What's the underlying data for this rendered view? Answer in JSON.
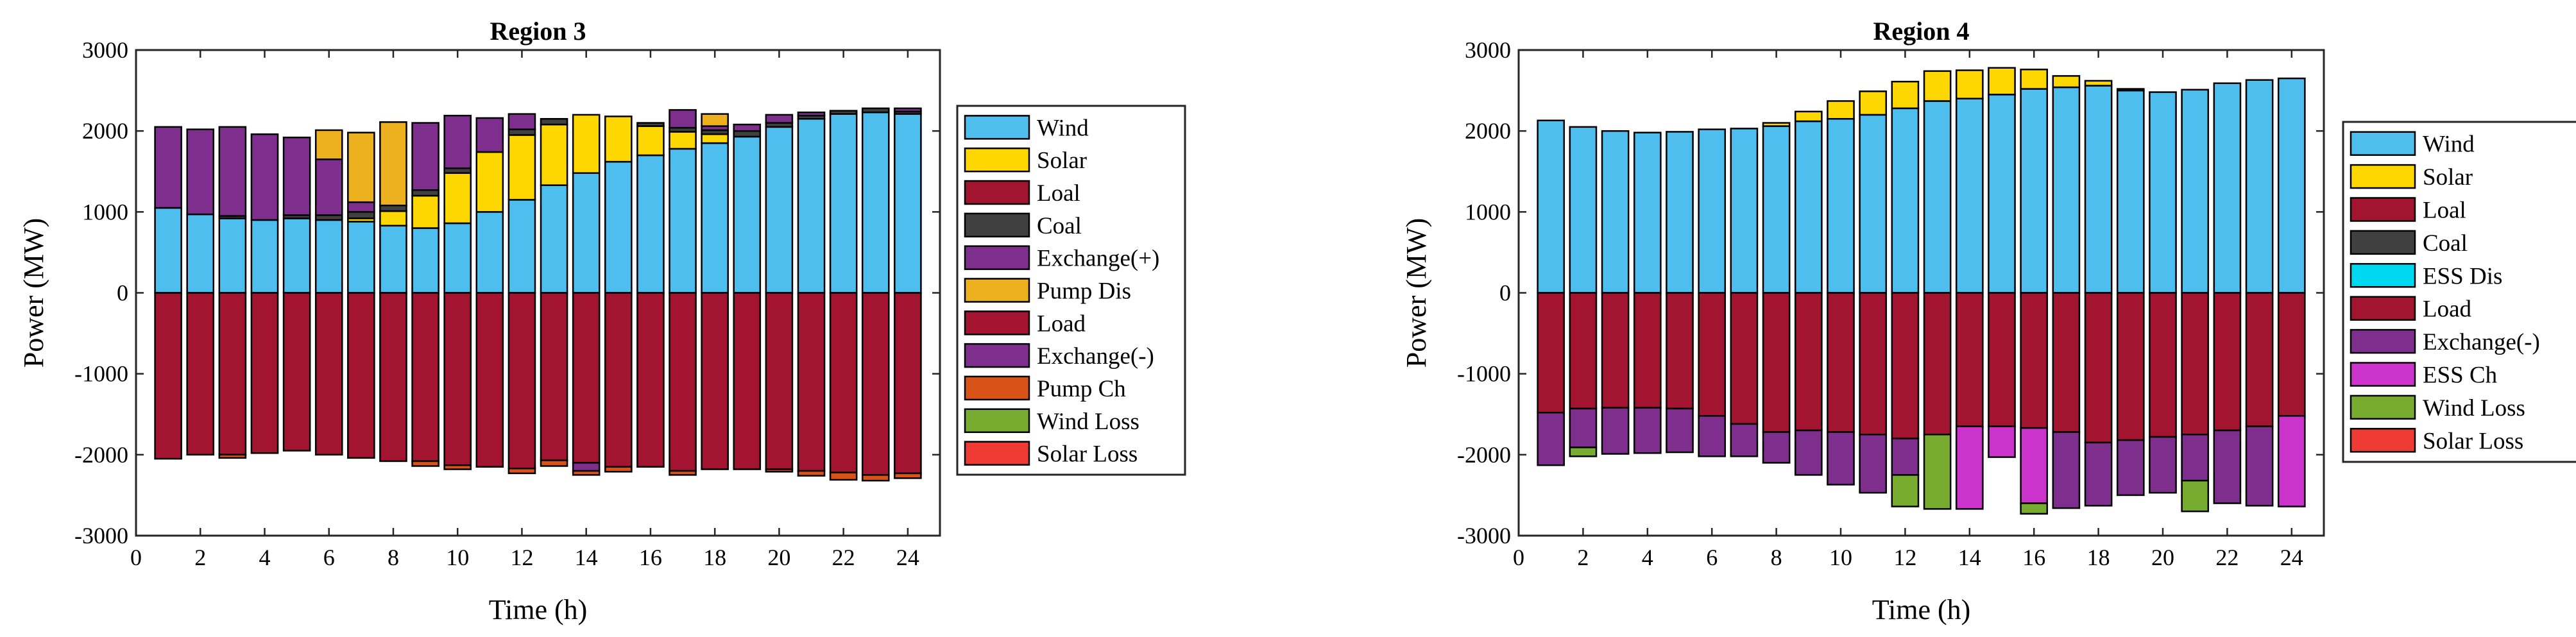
{
  "chart_data": [
    {
      "type": "bar",
      "stacked": true,
      "title": "Region 3",
      "xlabel": "Time (h)",
      "ylabel": "Power (MW)",
      "xlim": [
        0,
        25
      ],
      "ylim": [
        -3000,
        3000
      ],
      "xticks": [
        "0",
        "2",
        "4",
        "6",
        "8",
        "10",
        "12",
        "14",
        "16",
        "18",
        "20",
        "22",
        "24"
      ],
      "yticks": [
        "-3000",
        "-2000",
        "-1000",
        "0",
        "1000",
        "2000",
        "3000"
      ],
      "grid": false,
      "legend_position": "right",
      "x": [
        1,
        2,
        3,
        4,
        5,
        6,
        7,
        8,
        9,
        10,
        11,
        12,
        13,
        14,
        15,
        16,
        17,
        18,
        19,
        20,
        21,
        22,
        23,
        24
      ],
      "series": [
        {
          "name": "Wind",
          "color": "#4dbeee",
          "values": [
            1050,
            970,
            920,
            900,
            920,
            900,
            880,
            830,
            800,
            860,
            1000,
            1150,
            1330,
            1480,
            1620,
            1700,
            1780,
            1850,
            1930,
            2050,
            2150,
            2210,
            2230,
            2210
          ]
        },
        {
          "name": "Solar",
          "color": "#ffd700",
          "values": [
            0,
            0,
            0,
            0,
            0,
            0,
            40,
            180,
            400,
            620,
            740,
            800,
            750,
            720,
            560,
            360,
            210,
            110,
            0,
            0,
            0,
            0,
            0,
            0
          ]
        },
        {
          "name": "Loal",
          "color": "#a2142f",
          "values": [
            0,
            0,
            0,
            0,
            0,
            0,
            0,
            0,
            0,
            0,
            0,
            0,
            0,
            0,
            0,
            0,
            0,
            0,
            0,
            0,
            0,
            0,
            0,
            0
          ]
        },
        {
          "name": "Coal",
          "color": "#404040",
          "values": [
            0,
            0,
            30,
            0,
            40,
            60,
            80,
            70,
            70,
            60,
            0,
            70,
            70,
            0,
            0,
            40,
            50,
            50,
            70,
            50,
            40,
            40,
            50,
            30
          ]
        },
        {
          "name": "Exchange(+)",
          "color": "#7e2f8e",
          "values": [
            1000,
            1050,
            1100,
            1060,
            960,
            690,
            120,
            0,
            830,
            650,
            420,
            190,
            0,
            0,
            0,
            0,
            220,
            50,
            80,
            100,
            40,
            0,
            0,
            40
          ]
        },
        {
          "name": "Pump Dis",
          "color": "#edb120",
          "values": [
            0,
            0,
            0,
            0,
            0,
            360,
            860,
            1030,
            0,
            0,
            0,
            0,
            0,
            0,
            0,
            0,
            0,
            150,
            0,
            0,
            0,
            0,
            0,
            0
          ]
        },
        {
          "name": "Load",
          "color": "#a2142f",
          "values": [
            -2050,
            -2000,
            -2000,
            -1980,
            -1950,
            -2000,
            -2040,
            -2080,
            -2080,
            -2130,
            -2150,
            -2170,
            -2070,
            -2100,
            -2150,
            -2150,
            -2200,
            -2180,
            -2180,
            -2180,
            -2200,
            -2220,
            -2250,
            -2230
          ]
        },
        {
          "name": "Exchange(-)",
          "color": "#7e2f8e",
          "values": [
            0,
            0,
            0,
            0,
            0,
            0,
            0,
            0,
            0,
            0,
            0,
            0,
            0,
            -100,
            0,
            0,
            0,
            0,
            0,
            0,
            0,
            0,
            0,
            0
          ]
        },
        {
          "name": "Pump Ch",
          "color": "#d95319",
          "values": [
            0,
            0,
            -40,
            0,
            0,
            0,
            0,
            0,
            -60,
            -50,
            0,
            -60,
            -70,
            -50,
            -60,
            0,
            -50,
            0,
            0,
            -30,
            -60,
            -90,
            -70,
            -60
          ]
        },
        {
          "name": "Wind Loss",
          "color": "#77ac30",
          "values": [
            0,
            0,
            0,
            0,
            0,
            0,
            0,
            0,
            0,
            0,
            0,
            0,
            0,
            0,
            0,
            0,
            0,
            0,
            0,
            0,
            0,
            0,
            0,
            0
          ]
        },
        {
          "name": "Solar Loss",
          "color": "#f03b35",
          "values": [
            0,
            0,
            0,
            0,
            0,
            0,
            0,
            0,
            0,
            0,
            0,
            0,
            0,
            0,
            0,
            0,
            0,
            0,
            0,
            0,
            0,
            0,
            0,
            0
          ]
        }
      ]
    },
    {
      "type": "bar",
      "stacked": true,
      "title": "Region 4",
      "xlabel": "Time (h)",
      "ylabel": "Power (MW)",
      "xlim": [
        0,
        25
      ],
      "ylim": [
        -3000,
        3000
      ],
      "xticks": [
        "0",
        "2",
        "4",
        "6",
        "8",
        "10",
        "12",
        "14",
        "16",
        "18",
        "20",
        "22",
        "24"
      ],
      "yticks": [
        "-3000",
        "-2000",
        "-1000",
        "0",
        "1000",
        "2000",
        "3000"
      ],
      "grid": false,
      "legend_position": "right",
      "x": [
        1,
        2,
        3,
        4,
        5,
        6,
        7,
        8,
        9,
        10,
        11,
        12,
        13,
        14,
        15,
        16,
        17,
        18,
        19,
        20,
        21,
        22,
        23,
        24
      ],
      "series": [
        {
          "name": "Wind",
          "color": "#4dbeee",
          "values": [
            2130,
            2050,
            2000,
            1980,
            1990,
            2020,
            2030,
            2060,
            2120,
            2150,
            2200,
            2280,
            2370,
            2400,
            2450,
            2520,
            2540,
            2560,
            2500,
            2480,
            2510,
            2590,
            2630,
            2650
          ]
        },
        {
          "name": "Solar",
          "color": "#ffd700",
          "values": [
            0,
            0,
            0,
            0,
            0,
            0,
            0,
            40,
            120,
            220,
            290,
            330,
            370,
            350,
            330,
            240,
            140,
            60,
            20,
            0,
            0,
            0,
            0,
            0
          ]
        },
        {
          "name": "Loal",
          "color": "#a2142f",
          "values": [
            0,
            0,
            0,
            0,
            0,
            0,
            0,
            0,
            0,
            0,
            0,
            0,
            0,
            0,
            0,
            0,
            0,
            0,
            0,
            0,
            0,
            0,
            0,
            0
          ]
        },
        {
          "name": "Coal",
          "color": "#404040",
          "values": [
            0,
            0,
            0,
            0,
            0,
            0,
            0,
            0,
            0,
            0,
            0,
            0,
            0,
            0,
            0,
            0,
            0,
            0,
            0,
            0,
            0,
            0,
            0,
            0
          ]
        },
        {
          "name": "ESS Dis",
          "color": "#00d8f2",
          "values": [
            0,
            0,
            0,
            0,
            0,
            0,
            0,
            0,
            0,
            0,
            0,
            0,
            0,
            0,
            0,
            0,
            0,
            0,
            0,
            0,
            0,
            0,
            0,
            0
          ]
        },
        {
          "name": "Load",
          "color": "#a2142f",
          "values": [
            -1480,
            -1430,
            -1420,
            -1420,
            -1430,
            -1520,
            -1620,
            -1720,
            -1700,
            -1720,
            -1750,
            -1800,
            -1750,
            -1650,
            -1650,
            -1670,
            -1720,
            -1850,
            -1820,
            -1780,
            -1750,
            -1700,
            -1650,
            -1520
          ]
        },
        {
          "name": "Exchange(-)",
          "color": "#7e2f8e",
          "values": [
            -650,
            -480,
            -570,
            -560,
            -540,
            -500,
            -400,
            -380,
            -550,
            -650,
            -720,
            -450,
            0,
            0,
            0,
            0,
            -940,
            -780,
            -680,
            -690,
            -570,
            -900,
            -980,
            0
          ]
        },
        {
          "name": "ESS Ch",
          "color": "#cc33cc",
          "values": [
            0,
            0,
            0,
            0,
            0,
            0,
            0,
            0,
            0,
            0,
            0,
            0,
            0,
            -1020,
            -380,
            -930,
            0,
            0,
            0,
            0,
            0,
            0,
            0,
            -1120
          ]
        },
        {
          "name": "Wind Loss",
          "color": "#77ac30",
          "values": [
            0,
            -110,
            0,
            0,
            0,
            0,
            0,
            0,
            0,
            0,
            0,
            -390,
            -920,
            0,
            0,
            -130,
            0,
            0,
            0,
            0,
            -380,
            0,
            0,
            0
          ]
        },
        {
          "name": "Solar Loss",
          "color": "#f03b35",
          "values": [
            0,
            0,
            0,
            0,
            0,
            0,
            0,
            0,
            0,
            0,
            0,
            0,
            0,
            0,
            0,
            0,
            0,
            0,
            0,
            0,
            0,
            0,
            0,
            0
          ]
        }
      ]
    }
  ]
}
